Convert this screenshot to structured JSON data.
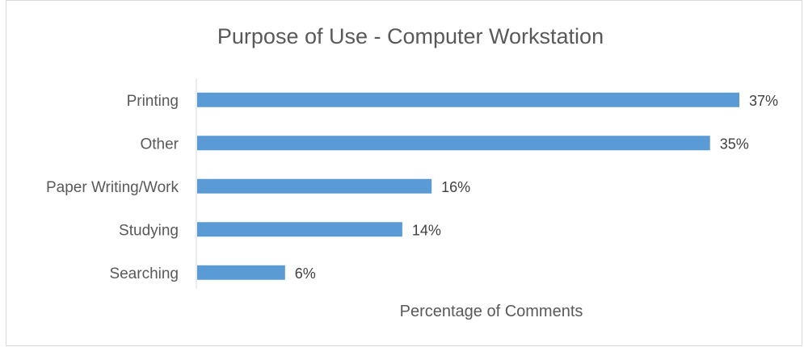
{
  "chart_data": {
    "type": "bar",
    "orientation": "horizontal",
    "title": "Purpose of Use - Computer Workstation",
    "xlabel": "Percentage of Comments",
    "ylabel": "",
    "categories": [
      "Printing",
      "Other",
      "Paper Writing/Work",
      "Studying",
      "Searching"
    ],
    "values": [
      37,
      35,
      16,
      14,
      6
    ],
    "value_labels": [
      "37%",
      "35%",
      "16%",
      "14%",
      "6%"
    ],
    "unit": "%",
    "xlim": [
      0,
      37
    ],
    "grid": false,
    "legend": "none",
    "bar_color": "#5b9bd5"
  }
}
